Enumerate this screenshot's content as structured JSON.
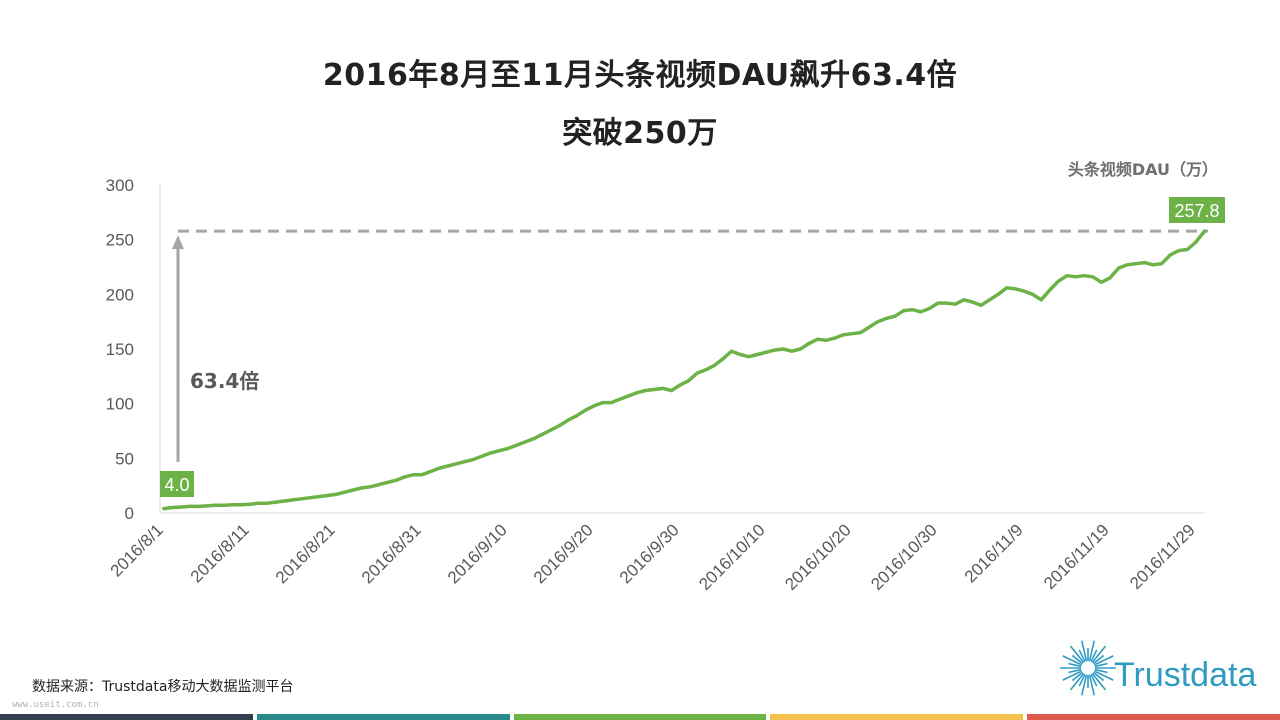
{
  "title_line1": "2016年8月至11月头条视频DAU飙升63.4倍",
  "title_line2": "突破250万",
  "unit_label": "头条视频DAU（万）",
  "source": "数据来源：Trustdata移动大数据监测平台",
  "watermark": "www.useit.com.cn",
  "logo_text": "Trustdata",
  "colors": {
    "line": "#6cb247",
    "label_bg": "#6cb247",
    "reference": "#a6a6a6",
    "arrow": "#a6a6a6",
    "axis_text": "#595959",
    "logo": "#2f9bc1",
    "bottom_bar": [
      "#333f4f",
      "#2a8a8a",
      "#6cb247",
      "#f2c14e",
      "#e05b4f"
    ]
  },
  "chart_data": {
    "type": "line",
    "title": "2016年8月至11月头条视频DAU飙升63.4倍 突破250万",
    "xlabel": "",
    "ylabel": "头条视频DAU（万）",
    "ylim": [
      0,
      300
    ],
    "yticks": [
      0,
      50,
      100,
      150,
      200,
      250,
      300
    ],
    "xtick_labels": [
      "2016/8/1",
      "2016/8/11",
      "2016/8/21",
      "2016/8/31",
      "2016/9/10",
      "2016/9/20",
      "2016/9/30",
      "2016/10/10",
      "2016/10/20",
      "2016/10/30",
      "2016/11/9",
      "2016/11/19",
      "2016/11/29"
    ],
    "grid": false,
    "series": [
      {
        "name": "头条视频DAU",
        "x": [
          "2016/8/1",
          "2016/8/2",
          "2016/8/3",
          "2016/8/4",
          "2016/8/5",
          "2016/8/6",
          "2016/8/7",
          "2016/8/8",
          "2016/8/9",
          "2016/8/10",
          "2016/8/11",
          "2016/8/12",
          "2016/8/13",
          "2016/8/14",
          "2016/8/15",
          "2016/8/16",
          "2016/8/17",
          "2016/8/18",
          "2016/8/19",
          "2016/8/20",
          "2016/8/21",
          "2016/8/22",
          "2016/8/23",
          "2016/8/24",
          "2016/8/25",
          "2016/8/26",
          "2016/8/27",
          "2016/8/28",
          "2016/8/29",
          "2016/8/30",
          "2016/8/31",
          "2016/9/1",
          "2016/9/2",
          "2016/9/3",
          "2016/9/4",
          "2016/9/5",
          "2016/9/6",
          "2016/9/7",
          "2016/9/8",
          "2016/9/9",
          "2016/9/10",
          "2016/9/11",
          "2016/9/12",
          "2016/9/13",
          "2016/9/14",
          "2016/9/15",
          "2016/9/16",
          "2016/9/17",
          "2016/9/18",
          "2016/9/19",
          "2016/9/20",
          "2016/9/21",
          "2016/9/22",
          "2016/9/23",
          "2016/9/24",
          "2016/9/25",
          "2016/9/26",
          "2016/9/27",
          "2016/9/28",
          "2016/9/29",
          "2016/9/30",
          "2016/10/1",
          "2016/10/2",
          "2016/10/3",
          "2016/10/4",
          "2016/10/5",
          "2016/10/6",
          "2016/10/7",
          "2016/10/8",
          "2016/10/9",
          "2016/10/10",
          "2016/10/11",
          "2016/10/12",
          "2016/10/13",
          "2016/10/14",
          "2016/10/15",
          "2016/10/16",
          "2016/10/17",
          "2016/10/18",
          "2016/10/19",
          "2016/10/20",
          "2016/10/21",
          "2016/10/22",
          "2016/10/23",
          "2016/10/24",
          "2016/10/25",
          "2016/10/26",
          "2016/10/27",
          "2016/10/28",
          "2016/10/29",
          "2016/10/30",
          "2016/10/31",
          "2016/11/1",
          "2016/11/2",
          "2016/11/3",
          "2016/11/4",
          "2016/11/5",
          "2016/11/6",
          "2016/11/7",
          "2016/11/8",
          "2016/11/9",
          "2016/11/10",
          "2016/11/11",
          "2016/11/12",
          "2016/11/13",
          "2016/11/14",
          "2016/11/15",
          "2016/11/16",
          "2016/11/17",
          "2016/11/18",
          "2016/11/19",
          "2016/11/20",
          "2016/11/21",
          "2016/11/22",
          "2016/11/23",
          "2016/11/24",
          "2016/11/25",
          "2016/11/26",
          "2016/11/27",
          "2016/11/28",
          "2016/11/29",
          "2016/11/30"
        ],
        "values": [
          4.0,
          5,
          5.5,
          6,
          6,
          6.5,
          7,
          7,
          7.5,
          7.5,
          8,
          9,
          9,
          10,
          11,
          12,
          13,
          14,
          15,
          16,
          17,
          19,
          21,
          23,
          24,
          26,
          28,
          30,
          33,
          35,
          35,
          38,
          41,
          43,
          45,
          47,
          49,
          52,
          55,
          57,
          59,
          62,
          65,
          68,
          72,
          76,
          80,
          85,
          89,
          94,
          98,
          101,
          101,
          104,
          107,
          110,
          112,
          113,
          114,
          112,
          117,
          121,
          128,
          131,
          135,
          141,
          148,
          145,
          143,
          145,
          147,
          149,
          150,
          148,
          150,
          155,
          159,
          158,
          160,
          163,
          164,
          165,
          170,
          175,
          178,
          180,
          185,
          186,
          184,
          187,
          192,
          192,
          191,
          195,
          193,
          190,
          195,
          200,
          206,
          205,
          203,
          200,
          195,
          204,
          212,
          217,
          216,
          217,
          216,
          211,
          215,
          224,
          227,
          228,
          229,
          227,
          228,
          236,
          240,
          241,
          248,
          257.8
        ]
      }
    ],
    "annotations": [
      {
        "label": "4.0",
        "x": "2016/8/1",
        "y": 4.0
      },
      {
        "label": "257.8",
        "x": "2016/11/30",
        "y": 257.8
      },
      {
        "label": "63.4倍",
        "type": "growth-arrow"
      }
    ],
    "reference_line": {
      "y": 257.8,
      "style": "dashed"
    }
  }
}
